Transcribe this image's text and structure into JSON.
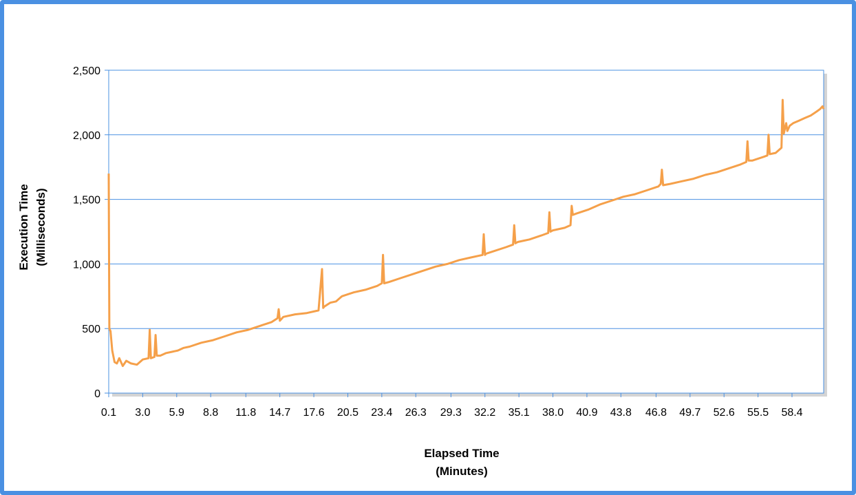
{
  "chart_data": {
    "type": "line",
    "title": "",
    "xlabel_line1": "Elapsed Time",
    "xlabel_line2": "(Minutes)",
    "ylabel_line1": "Execution Time",
    "ylabel_line2": "(Milliseconds)",
    "ylim": [
      0,
      2500
    ],
    "y_ticks": [
      0,
      500,
      1000,
      1500,
      2000,
      2500
    ],
    "y_tick_labels": [
      "0",
      "500",
      "1,000",
      "1,500",
      "2,000",
      "2,500"
    ],
    "x_tick_labels": [
      "0.1",
      "3.0",
      "5.9",
      "8.8",
      "11.8",
      "14.7",
      "17.6",
      "20.5",
      "23.4",
      "26.3",
      "29.3",
      "32.2",
      "35.1",
      "38.0",
      "40.9",
      "43.8",
      "46.8",
      "49.7",
      "52.6",
      "55.5",
      "58.4"
    ],
    "x_tick_values": [
      0.1,
      3.0,
      5.9,
      8.8,
      11.8,
      14.7,
      17.6,
      20.5,
      23.4,
      26.3,
      29.3,
      32.2,
      35.1,
      38.0,
      40.9,
      43.8,
      46.8,
      49.7,
      52.6,
      55.5,
      58.4
    ],
    "xlim": [
      0.1,
      61.1
    ],
    "grid": "horizontal",
    "legend": "none",
    "series": [
      {
        "color": "#f5a04a",
        "x": [
          0.1,
          0.15,
          0.25,
          0.4,
          0.6,
          0.8,
          1.0,
          1.3,
          1.6,
          2.0,
          2.5,
          3.0,
          3.5,
          3.6,
          3.7,
          4.0,
          4.1,
          4.2,
          4.5,
          5.0,
          5.5,
          6.0,
          6.5,
          7.0,
          8.0,
          9.0,
          10.0,
          11.0,
          12.0,
          13.0,
          14.0,
          14.5,
          14.6,
          14.7,
          15.0,
          16.0,
          17.0,
          18.0,
          18.3,
          18.4,
          18.5,
          19.0,
          19.5,
          20.0,
          21.0,
          22.0,
          23.0,
          23.4,
          23.5,
          23.6,
          24.0,
          25.0,
          26.0,
          27.0,
          28.0,
          29.0,
          30.0,
          31.0,
          32.0,
          32.1,
          32.2,
          32.3,
          33.0,
          34.0,
          34.6,
          34.7,
          34.8,
          35.0,
          36.0,
          37.0,
          37.6,
          37.7,
          37.8,
          38.0,
          39.0,
          39.5,
          39.6,
          39.7,
          40.0,
          41.0,
          42.0,
          43.0,
          44.0,
          45.0,
          46.0,
          47.0,
          47.2,
          47.3,
          47.4,
          48.0,
          49.0,
          50.0,
          51.0,
          52.0,
          53.0,
          54.0,
          54.5,
          54.6,
          54.7,
          55.0,
          56.0,
          56.3,
          56.4,
          56.5,
          57.0,
          57.5,
          57.6,
          57.7,
          57.9,
          58.0,
          58.2,
          58.5,
          59.0,
          59.5,
          60.0,
          60.5,
          60.8,
          61.0,
          61.1
        ],
        "y": [
          1700,
          500,
          480,
          330,
          240,
          230,
          270,
          210,
          250,
          230,
          220,
          260,
          270,
          490,
          270,
          280,
          450,
          290,
          290,
          310,
          320,
          330,
          350,
          360,
          390,
          410,
          440,
          470,
          490,
          520,
          550,
          580,
          650,
          560,
          590,
          610,
          620,
          640,
          960,
          660,
          670,
          700,
          710,
          750,
          780,
          800,
          830,
          850,
          1070,
          850,
          860,
          890,
          920,
          950,
          980,
          1000,
          1030,
          1050,
          1070,
          1230,
          1070,
          1080,
          1100,
          1130,
          1150,
          1300,
          1160,
          1170,
          1190,
          1220,
          1240,
          1400,
          1250,
          1260,
          1280,
          1300,
          1450,
          1380,
          1390,
          1420,
          1460,
          1490,
          1520,
          1540,
          1570,
          1600,
          1620,
          1730,
          1610,
          1620,
          1640,
          1660,
          1690,
          1710,
          1740,
          1770,
          1790,
          1950,
          1800,
          1800,
          1830,
          1840,
          2000,
          1850,
          1860,
          1900,
          2270,
          2010,
          2090,
          2030,
          2070,
          2090,
          2110,
          2130,
          2150,
          2180,
          2200,
          2220,
          2200
        ]
      }
    ]
  }
}
